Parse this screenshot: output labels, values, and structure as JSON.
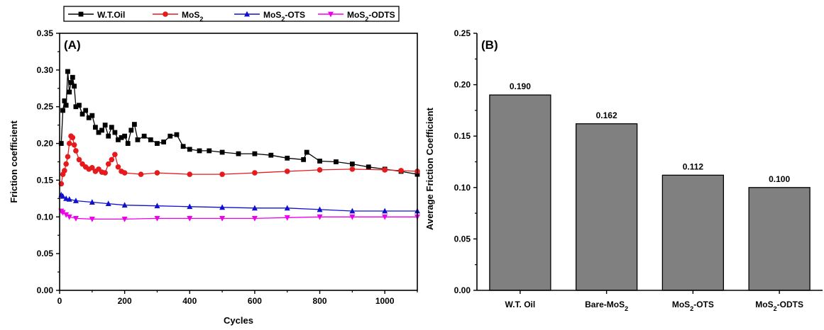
{
  "chart_data": [
    {
      "type": "line",
      "panel_label": "(A)",
      "xlabel": "Cycles",
      "ylabel": "Friction coefficient",
      "xlim": [
        0,
        1100
      ],
      "ylim": [
        0,
        0.35
      ],
      "xticks": [
        "0",
        "200",
        "400",
        "600",
        "800",
        "1000"
      ],
      "xtick_values": [
        0,
        200,
        400,
        600,
        800,
        1000
      ],
      "yticks": [
        "0.00",
        "0.05",
        "0.10",
        "0.15",
        "0.20",
        "0.25",
        "0.30",
        "0.35"
      ],
      "ytick_values": [
        0,
        0.05,
        0.1,
        0.15,
        0.2,
        0.25,
        0.3,
        0.35
      ],
      "legend_position": "top",
      "series": [
        {
          "name": "W.T.Oil",
          "name_base": "W.T.Oil",
          "name_sub": "",
          "name_tail": "",
          "color": "#000000",
          "marker": "square",
          "x": [
            5,
            10,
            15,
            20,
            25,
            30,
            35,
            40,
            45,
            50,
            60,
            70,
            80,
            90,
            100,
            110,
            120,
            130,
            140,
            150,
            160,
            170,
            180,
            190,
            200,
            210,
            220,
            230,
            240,
            260,
            280,
            300,
            320,
            340,
            360,
            380,
            400,
            430,
            460,
            500,
            550,
            600,
            650,
            700,
            750,
            760,
            800,
            850,
            900,
            950,
            1000,
            1050,
            1100
          ],
          "y": [
            0.2,
            0.245,
            0.258,
            0.252,
            0.298,
            0.27,
            0.283,
            0.29,
            0.278,
            0.25,
            0.252,
            0.24,
            0.245,
            0.235,
            0.238,
            0.222,
            0.215,
            0.218,
            0.225,
            0.21,
            0.222,
            0.215,
            0.205,
            0.208,
            0.21,
            0.2,
            0.218,
            0.226,
            0.205,
            0.21,
            0.205,
            0.2,
            0.202,
            0.21,
            0.212,
            0.196,
            0.192,
            0.19,
            0.19,
            0.188,
            0.186,
            0.186,
            0.184,
            0.18,
            0.178,
            0.188,
            0.176,
            0.175,
            0.172,
            0.168,
            0.165,
            0.162,
            0.158
          ]
        },
        {
          "name": "MoS2",
          "name_base": "MoS",
          "name_sub": "2",
          "name_tail": "",
          "color": "#e41a1c",
          "marker": "circle",
          "x": [
            5,
            10,
            15,
            20,
            25,
            30,
            35,
            40,
            45,
            50,
            60,
            70,
            80,
            90,
            100,
            110,
            120,
            130,
            140,
            150,
            160,
            170,
            180,
            190,
            200,
            250,
            300,
            400,
            500,
            600,
            700,
            800,
            900,
            1000,
            1050,
            1100
          ],
          "y": [
            0.145,
            0.158,
            0.163,
            0.172,
            0.182,
            0.2,
            0.21,
            0.208,
            0.198,
            0.19,
            0.178,
            0.172,
            0.168,
            0.165,
            0.167,
            0.162,
            0.165,
            0.161,
            0.16,
            0.172,
            0.178,
            0.185,
            0.168,
            0.162,
            0.16,
            0.158,
            0.16,
            0.158,
            0.158,
            0.16,
            0.162,
            0.164,
            0.165,
            0.164,
            0.163,
            0.162
          ]
        },
        {
          "name": "MoS2-OTS",
          "name_base": "MoS",
          "name_sub": "2",
          "name_tail": "-OTS",
          "color": "#1010d0",
          "marker": "triangle-up",
          "x": [
            5,
            10,
            20,
            30,
            50,
            100,
            150,
            200,
            300,
            400,
            500,
            600,
            700,
            800,
            900,
            1000,
            1100
          ],
          "y": [
            0.13,
            0.128,
            0.125,
            0.124,
            0.122,
            0.12,
            0.118,
            0.116,
            0.115,
            0.114,
            0.113,
            0.112,
            0.112,
            0.11,
            0.108,
            0.108,
            0.108
          ]
        },
        {
          "name": "MoS2-ODTS",
          "name_base": "MoS",
          "name_sub": "2",
          "name_tail": "-ODTS",
          "color": "#ee00ee",
          "marker": "triangle-down",
          "x": [
            5,
            10,
            20,
            30,
            50,
            100,
            200,
            300,
            400,
            500,
            600,
            700,
            800,
            900,
            1000,
            1100
          ],
          "y": [
            0.108,
            0.106,
            0.103,
            0.1,
            0.098,
            0.097,
            0.097,
            0.098,
            0.098,
            0.098,
            0.098,
            0.099,
            0.1,
            0.1,
            0.1,
            0.1
          ]
        }
      ]
    },
    {
      "type": "bar",
      "panel_label": "(B)",
      "xlabel": "",
      "ylabel": "Average Friction Coefficient",
      "ylim": [
        0,
        0.25
      ],
      "yticks": [
        "0.00",
        "0.05",
        "0.10",
        "0.15",
        "0.20",
        "0.25"
      ],
      "ytick_values": [
        0,
        0.05,
        0.1,
        0.15,
        0.2,
        0.25
      ],
      "bar_color": "#808080",
      "categories": [
        {
          "base": "W.T. Oil",
          "sub": "",
          "tail": ""
        },
        {
          "base": "Bare-MoS",
          "sub": "2",
          "tail": ""
        },
        {
          "base": "MoS",
          "sub": "2",
          "tail": "-OTS"
        },
        {
          "base": "MoS",
          "sub": "2",
          "tail": "-ODTS"
        }
      ],
      "values": [
        0.19,
        0.162,
        0.112,
        0.1
      ],
      "value_labels": [
        "0.190",
        "0.162",
        "0.112",
        "0.100"
      ]
    }
  ]
}
